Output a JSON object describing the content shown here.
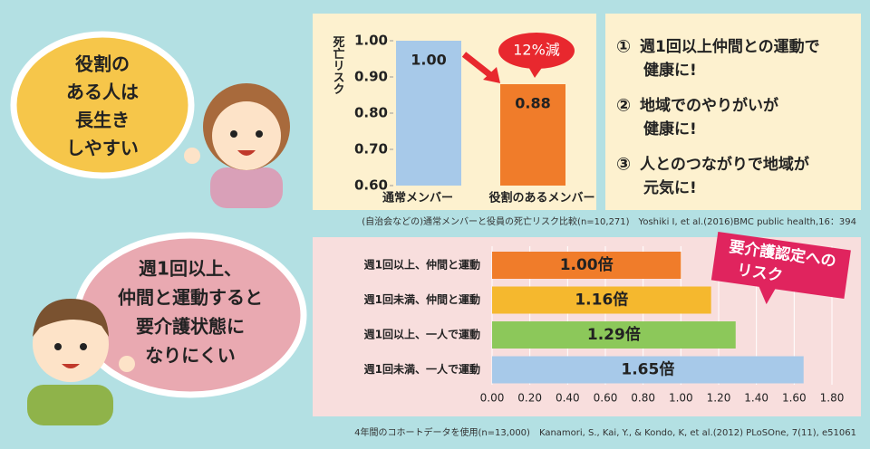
{
  "bubbles": [
    {
      "lines": [
        "役割の",
        "ある人は",
        "長生き",
        "しやすい"
      ]
    },
    {
      "lines": [
        "週1回以上、",
        "仲間と運動すると",
        "要介護状態に",
        "なりにくい"
      ]
    }
  ],
  "points": [
    {
      "marker": "①",
      "lines": [
        "週1回以上仲間との運動で",
        "健康に!"
      ]
    },
    {
      "marker": "②",
      "lines": [
        "地域でのやりがいが",
        "健康に!"
      ]
    },
    {
      "marker": "③",
      "lines": [
        "人とのつながりで地域が",
        "元気に!"
      ]
    }
  ],
  "chart_data": [
    {
      "type": "bar",
      "y_label": "死亡リスク",
      "categories": [
        "通常メンバー",
        "役割のあるメンバー"
      ],
      "values": [
        1.0,
        0.88
      ],
      "value_labels": [
        "1.00",
        "0.88"
      ],
      "colors": [
        "#a7c9e9",
        "#f07c2a"
      ],
      "ylim": [
        0.6,
        1.0
      ],
      "yticks": [
        {
          "value": 0.6,
          "label": "0.60"
        },
        {
          "value": 0.7,
          "label": "0.70"
        },
        {
          "value": 0.8,
          "label": "0.80"
        },
        {
          "value": 0.9,
          "label": "0.90"
        },
        {
          "value": 1.0,
          "label": "1.00"
        }
      ],
      "annotation": "12%減",
      "caption": "(自治会などの)通常メンバーと役員の死亡リスク比較(n=10,271)　Yoshiki I, et al.(2016)BMC public health,16：394"
    },
    {
      "type": "hbar",
      "categories": [
        "週1回以上、仲間と運動",
        "週1回未満、仲間と運動",
        "週1回以上、一人で運動",
        "週1回未満、一人で運動"
      ],
      "values": [
        1.0,
        1.16,
        1.29,
        1.65
      ],
      "value_labels": [
        "1.00倍",
        "1.16倍",
        "1.29倍",
        "1.65倍"
      ],
      "colors": [
        "#f07c2a",
        "#f5b82e",
        "#8cc85a",
        "#a7c9e9"
      ],
      "xlim": [
        0,
        1.8
      ],
      "xticks": [
        {
          "value": 0,
          "label": "0.00"
        },
        {
          "value": 0.2,
          "label": "0.20"
        },
        {
          "value": 0.4,
          "label": "0.40"
        },
        {
          "value": 0.6,
          "label": "0.60"
        },
        {
          "value": 0.8,
          "label": "0.80"
        },
        {
          "value": 1.0,
          "label": "1.00"
        },
        {
          "value": 1.2,
          "label": "1.20"
        },
        {
          "value": 1.4,
          "label": "1.40"
        },
        {
          "value": 1.6,
          "label": "1.60"
        },
        {
          "value": 1.8,
          "label": "1.80"
        }
      ],
      "annotation": [
        "要介護認定への",
        "リスク"
      ],
      "caption": "4年間のコホートデータを使用(n=13,000)　Kanamori, S., Kai, Y., & Kondo, K, et al.(2012) PLoSOne, 7(11), e51061"
    }
  ]
}
